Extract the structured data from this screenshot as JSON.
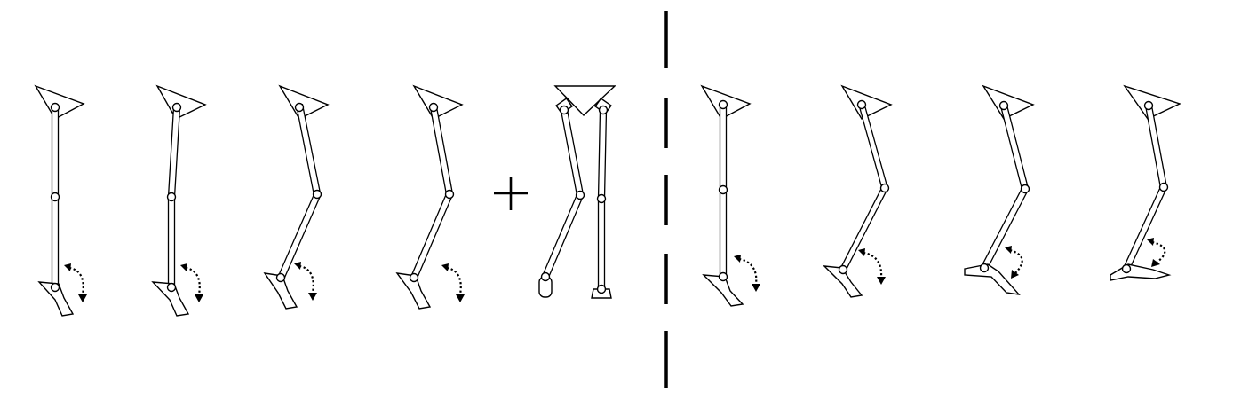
{
  "diagram": {
    "icons": [
      "hip-triangle-icon",
      "knee-joint-icon",
      "ankle-joint-icon",
      "foot-icon",
      "rotation-arrow-icon",
      "plus-icon",
      "dashed-divider-icon"
    ],
    "colors": {
      "line": "#000000",
      "fill": "#ffffff",
      "background": "#ffffff"
    }
  }
}
